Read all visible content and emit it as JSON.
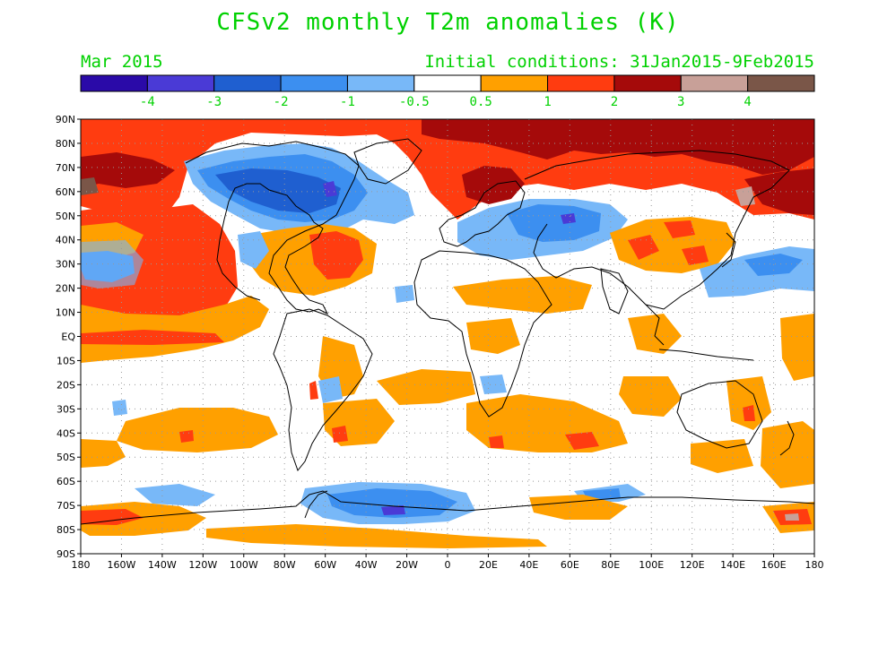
{
  "title": "CFSv2 monthly T2m anomalies (K)",
  "valid_month": "Mar 2015",
  "initial_conditions": "Initial conditions: 31Jan2015-9Feb2015",
  "colors": {
    "text_green": "#00d100",
    "palette": [
      "#2a0aa8",
      "#4a3ad6",
      "#1f5fd0",
      "#3c8ff0",
      "#78b8f8",
      "#ffffff",
      "#ffa000",
      "#ff3c10",
      "#a50a0a",
      "#c8a098",
      "#7a5648"
    ]
  },
  "colorbar": {
    "labels": [
      "-4",
      "-3",
      "-2",
      "-1",
      "-0.5",
      "0.5",
      "1",
      "2",
      "3",
      "4"
    ]
  },
  "map": {
    "lat_labels": [
      "90N",
      "80N",
      "70N",
      "60N",
      "50N",
      "40N",
      "30N",
      "20N",
      "10N",
      "EQ",
      "10S",
      "20S",
      "30S",
      "40S",
      "50S",
      "60S",
      "70S",
      "80S",
      "90S"
    ],
    "lon_labels": [
      "180",
      "160W",
      "140W",
      "120W",
      "100W",
      "80W",
      "60W",
      "40W",
      "20W",
      "0",
      "20E",
      "40E",
      "60E",
      "80E",
      "100E",
      "120E",
      "140E",
      "160E",
      "180"
    ]
  },
  "chart_data": {
    "type": "heatmap",
    "title": "CFSv2 monthly T2m anomalies (K)",
    "variable": "T2m anomaly",
    "unit": "K",
    "legend_placement": "top",
    "color_levels": [
      -4,
      -3,
      -2,
      -1,
      -0.5,
      0.5,
      1,
      2,
      3,
      4
    ],
    "x_range": [
      -180,
      180
    ],
    "y_range": [
      -90,
      90
    ],
    "grid": true
  }
}
